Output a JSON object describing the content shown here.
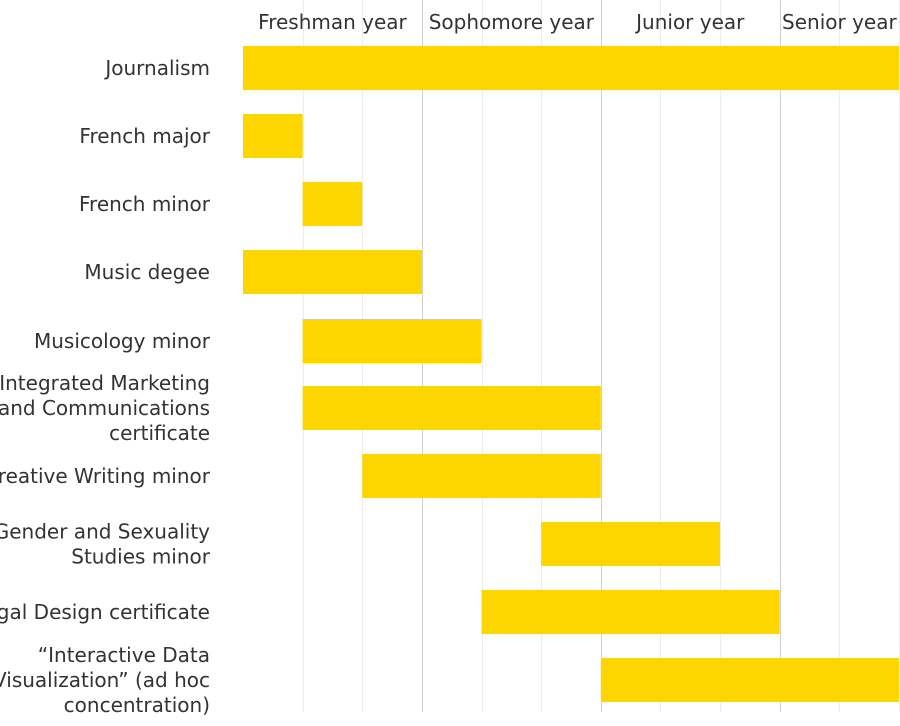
{
  "chart_data": {
    "type": "bar",
    "orientation": "horizontal-range",
    "x_axis": {
      "position": "top",
      "labels": [
        "Freshman year",
        "Sophomore year",
        "Junior year",
        "Senior year"
      ],
      "range_quarters": [
        0,
        11
      ],
      "grid": "major lines at year boundaries, minor lines at each quarter"
    },
    "bar_color": "#FDD600",
    "categories": [
      "Journalism",
      "French major",
      "French minor",
      "Music degee",
      "Musicology minor",
      "Integrated Marketing and Communications certificate",
      "Creative Writing minor",
      "Gender and Sexuality Studies minor",
      "Segal Design certificate",
      "“Interactive Data Visualization” (ad hoc concentration)"
    ],
    "category_label_lines": [
      [
        "Journalism"
      ],
      [
        "French major"
      ],
      [
        "French minor"
      ],
      [
        "Music degee"
      ],
      [
        "Musicology minor"
      ],
      [
        "Integrated Marketing",
        "and Communications",
        "certificate"
      ],
      [
        "Creative Writing minor"
      ],
      [
        "Gender and Sexuality",
        "Studies minor"
      ],
      [
        "Segal Design certificate"
      ],
      [
        "“Interactive Data",
        "Visualization” (ad hoc",
        "concentration)"
      ]
    ],
    "ranges_quarters": [
      [
        0,
        11
      ],
      [
        0,
        1
      ],
      [
        1,
        2
      ],
      [
        0,
        3
      ],
      [
        1,
        4
      ],
      [
        1,
        6
      ],
      [
        2,
        6
      ],
      [
        5,
        8
      ],
      [
        4,
        9
      ],
      [
        6,
        11
      ]
    ]
  }
}
